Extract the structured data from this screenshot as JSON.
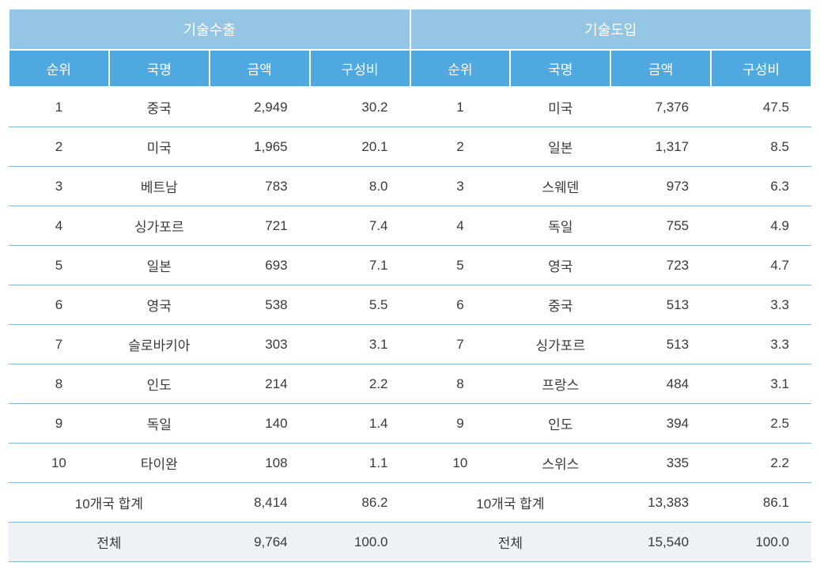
{
  "table": {
    "type": "table",
    "background_color": "#ffffff",
    "border_color": "#7fb8dd",
    "super_header_bg": "#95c5e5",
    "sub_header_bg": "#4fa8e0",
    "header_text_color": "#ffffff",
    "body_text_color": "#3a3a3a",
    "total_row_bg": "#eef2f5",
    "font_size_header": 18,
    "font_size_subheader": 17,
    "font_size_body": 17,
    "super_headers": {
      "left": "기술수출",
      "right": "기술도입"
    },
    "sub_headers": {
      "rank": "순위",
      "country": "국명",
      "amount": "금액",
      "ratio": "구성비"
    },
    "left_rows": [
      {
        "rank": "1",
        "country": "중국",
        "amount": "2,949",
        "ratio": "30.2"
      },
      {
        "rank": "2",
        "country": "미국",
        "amount": "1,965",
        "ratio": "20.1"
      },
      {
        "rank": "3",
        "country": "베트남",
        "amount": "783",
        "ratio": "8.0"
      },
      {
        "rank": "4",
        "country": "싱가포르",
        "amount": "721",
        "ratio": "7.4"
      },
      {
        "rank": "5",
        "country": "일본",
        "amount": "693",
        "ratio": "7.1"
      },
      {
        "rank": "6",
        "country": "영국",
        "amount": "538",
        "ratio": "5.5"
      },
      {
        "rank": "7",
        "country": "슬로바키아",
        "amount": "303",
        "ratio": "3.1"
      },
      {
        "rank": "8",
        "country": "인도",
        "amount": "214",
        "ratio": "2.2"
      },
      {
        "rank": "9",
        "country": "독일",
        "amount": "140",
        "ratio": "1.4"
      },
      {
        "rank": "10",
        "country": "타이완",
        "amount": "108",
        "ratio": "1.1"
      }
    ],
    "right_rows": [
      {
        "rank": "1",
        "country": "미국",
        "amount": "7,376",
        "ratio": "47.5"
      },
      {
        "rank": "2",
        "country": "일본",
        "amount": "1,317",
        "ratio": "8.5"
      },
      {
        "rank": "3",
        "country": "스웨덴",
        "amount": "973",
        "ratio": "6.3"
      },
      {
        "rank": "4",
        "country": "독일",
        "amount": "755",
        "ratio": "4.9"
      },
      {
        "rank": "5",
        "country": "영국",
        "amount": "723",
        "ratio": "4.7"
      },
      {
        "rank": "6",
        "country": "중국",
        "amount": "513",
        "ratio": "3.3"
      },
      {
        "rank": "7",
        "country": "싱가포르",
        "amount": "513",
        "ratio": "3.3"
      },
      {
        "rank": "8",
        "country": "프랑스",
        "amount": "484",
        "ratio": "3.1"
      },
      {
        "rank": "9",
        "country": "인도",
        "amount": "394",
        "ratio": "2.5"
      },
      {
        "rank": "10",
        "country": "스위스",
        "amount": "335",
        "ratio": "2.2"
      }
    ],
    "subtotal": {
      "label": "10개국 합계",
      "left_amount": "8,414",
      "left_ratio": "86.2",
      "right_amount": "13,383",
      "right_ratio": "86.1"
    },
    "total": {
      "label": "전체",
      "left_amount": "9,764",
      "left_ratio": "100.0",
      "right_amount": "15,540",
      "right_ratio": "100.0"
    }
  }
}
